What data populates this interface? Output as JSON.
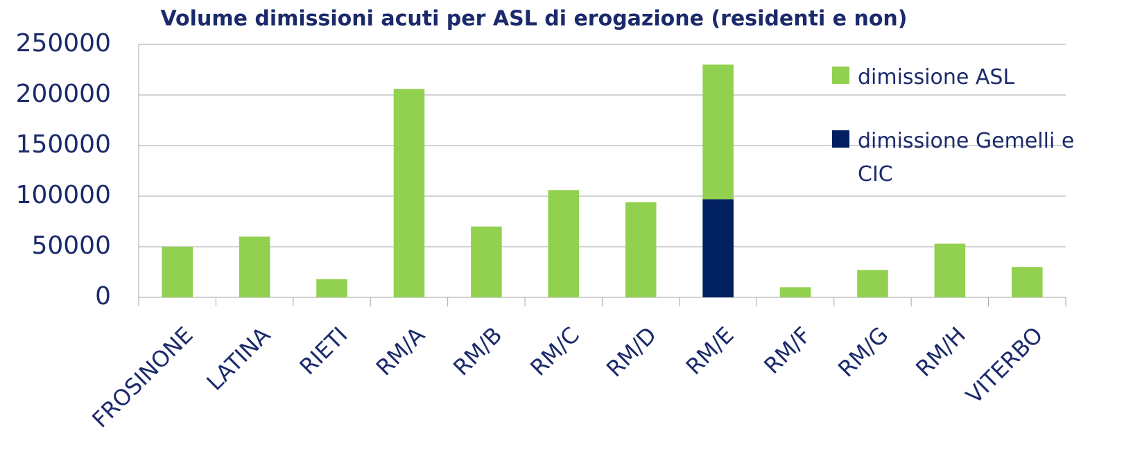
{
  "chart_data": {
    "type": "stacked_bar",
    "title": "Volume dimissioni acuti per ASL di erogazione (residenti e non)",
    "categories": [
      "FROSINONE",
      "LATINA",
      "RIETI",
      "RM/A",
      "RM/B",
      "RM/C",
      "RM/D",
      "RM/E",
      "RM/F",
      "RM/G",
      "RM/H",
      "VITERBO"
    ],
    "series": [
      {
        "name": "dimissione ASL",
        "color": "#92d050",
        "values": [
          50000,
          60000,
          18000,
          206000,
          70000,
          106000,
          94000,
          133000,
          10000,
          27000,
          53000,
          30000
        ]
      },
      {
        "name": "dimissione Gemelli e CIC",
        "color": "#002060",
        "values": [
          null,
          null,
          null,
          null,
          null,
          null,
          null,
          97000,
          null,
          null,
          null,
          null
        ]
      }
    ],
    "ylim": [
      0,
      250000
    ],
    "yticks": [
      0,
      50000,
      100000,
      150000,
      200000,
      250000
    ],
    "grid": true
  }
}
